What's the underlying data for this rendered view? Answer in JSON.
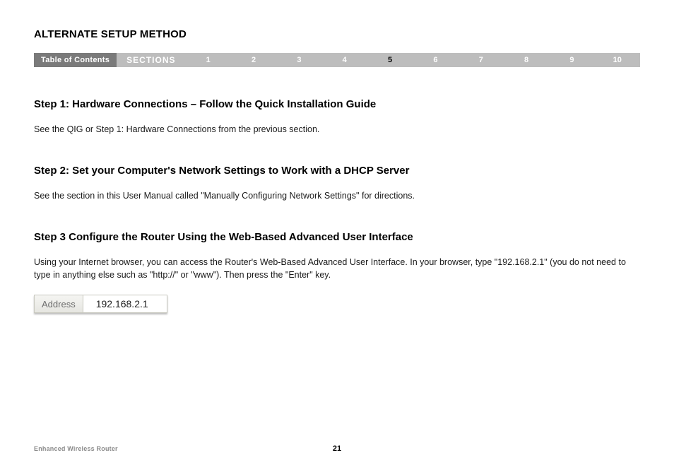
{
  "header": {
    "title": "ALTERNATE SETUP METHOD"
  },
  "nav": {
    "toc_label": "Table of Contents",
    "sections_label": "SECTIONS",
    "items": [
      {
        "label": "1",
        "active": false
      },
      {
        "label": "2",
        "active": false
      },
      {
        "label": "3",
        "active": false
      },
      {
        "label": "4",
        "active": false
      },
      {
        "label": "5",
        "active": true
      },
      {
        "label": "6",
        "active": false
      },
      {
        "label": "7",
        "active": false
      },
      {
        "label": "8",
        "active": false
      },
      {
        "label": "9",
        "active": false
      },
      {
        "label": "10",
        "active": false
      }
    ],
    "colors": {
      "toc_bg": "#7a7a7a",
      "bar_bg": "#bdbdbd",
      "text_inactive": "#ffffff",
      "text_active": "#000000"
    }
  },
  "steps": [
    {
      "heading": "Step 1: Hardware Connections – Follow the Quick Installation Guide",
      "body": "See the QIG or Step 1: Hardware Connections from the previous section."
    },
    {
      "heading": "Step 2: Set your Computer's Network Settings to Work with a DHCP Server",
      "body": "See the section in this User Manual called \"Manually Configuring Network Settings\" for directions."
    },
    {
      "heading": "Step 3 Configure the Router Using the Web-Based Advanced User Interface",
      "body": "Using your Internet browser, you can access the Router's Web-Based Advanced User Interface. In your browser, type \"192.168.2.1\" (you do not need to type in anything else such as \"http://\" or \"www\"). Then press the \"Enter\" key."
    }
  ],
  "address_bar": {
    "label": "Address",
    "value": "192.168.2.1",
    "label_bg": "#eeeee9",
    "field_bg": "#ffffff",
    "border": "#c9c9c0"
  },
  "footer": {
    "product": "Enhanced Wireless Router",
    "page": "21"
  },
  "typography": {
    "title_fontsize": 15,
    "heading_fontsize": 15,
    "body_fontsize": 12.5,
    "nav_fontsize": 11,
    "footer_fontsize": 9
  }
}
